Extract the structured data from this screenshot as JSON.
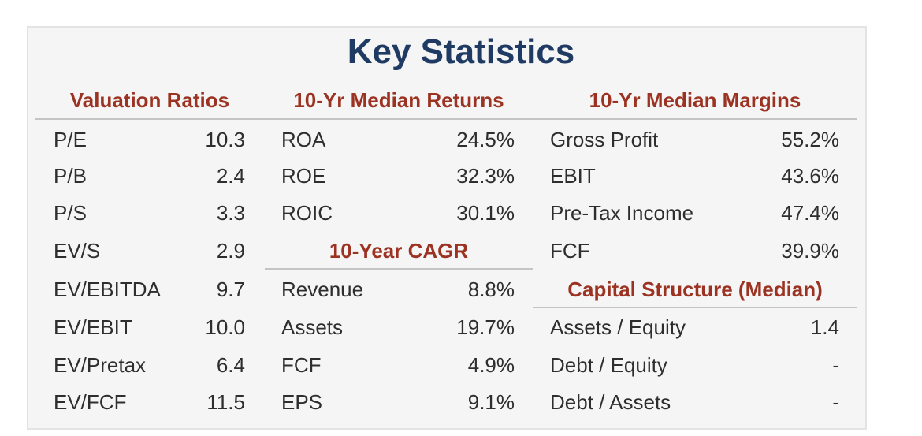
{
  "title": "Key Statistics",
  "valuation": {
    "header": "Valuation Ratios",
    "rows": [
      {
        "label": "P/E",
        "value": "10.3"
      },
      {
        "label": "P/B",
        "value": "2.4"
      },
      {
        "label": "P/S",
        "value": "3.3"
      },
      {
        "label": "EV/S",
        "value": "2.9"
      },
      {
        "label": "EV/EBITDA",
        "value": "9.7"
      },
      {
        "label": "EV/EBIT",
        "value": "10.0"
      },
      {
        "label": "EV/Pretax",
        "value": "6.4"
      },
      {
        "label": "EV/FCF",
        "value": "11.5"
      }
    ]
  },
  "returns": {
    "header": "10-Yr Median Returns",
    "rows": [
      {
        "label": "ROA",
        "value": "24.5%"
      },
      {
        "label": "ROE",
        "value": "32.3%"
      },
      {
        "label": "ROIC",
        "value": "30.1%"
      }
    ]
  },
  "cagr": {
    "header": "10-Year CAGR",
    "rows": [
      {
        "label": "Revenue",
        "value": "8.8%"
      },
      {
        "label": "Assets",
        "value": "19.7%"
      },
      {
        "label": "FCF",
        "value": "4.9%"
      },
      {
        "label": "EPS",
        "value": "9.1%"
      }
    ]
  },
  "margins": {
    "header": "10-Yr Median Margins",
    "rows": [
      {
        "label": "Gross Profit",
        "value": "55.2%"
      },
      {
        "label": "EBIT",
        "value": "43.6%"
      },
      {
        "label": "Pre-Tax Income",
        "value": "47.4%"
      },
      {
        "label": "FCF",
        "value": "39.9%"
      }
    ]
  },
  "capital": {
    "header": "Capital Structure (Median)",
    "rows": [
      {
        "label": "Assets / Equity",
        "value": "1.4"
      },
      {
        "label": "Debt / Equity",
        "value": "-"
      },
      {
        "label": "Debt / Assets",
        "value": "-"
      }
    ]
  },
  "colors": {
    "title": "#1f3a63",
    "section_header": "#9c3322",
    "text": "#2e2e2e",
    "card_background": "#f5f5f5",
    "rule": "#c4c4c4"
  }
}
